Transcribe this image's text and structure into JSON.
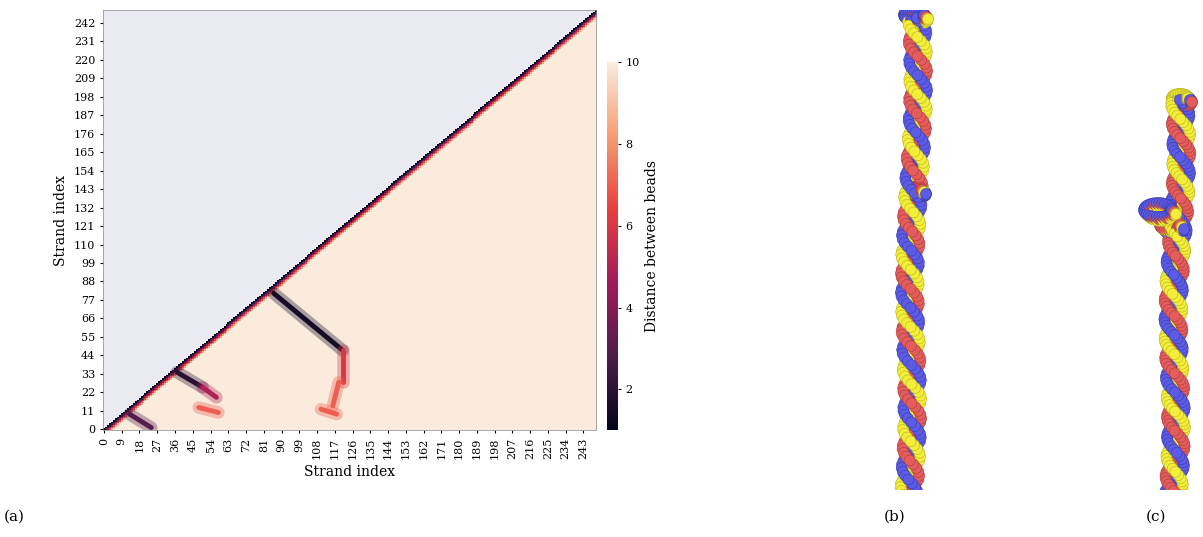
{
  "chart_data": {
    "type": "heatmap",
    "xlabel": "Strand index",
    "ylabel": "Strand index",
    "n": 250,
    "xlim": [
      -0.5,
      249.5
    ],
    "ylim": [
      -0.5,
      249.5
    ],
    "xticks": [
      0,
      9,
      18,
      27,
      36,
      45,
      54,
      63,
      72,
      81,
      90,
      99,
      108,
      117,
      126,
      135,
      144,
      153,
      162,
      171,
      180,
      189,
      198,
      207,
      216,
      225,
      234,
      243
    ],
    "yticks": [
      0,
      11,
      22,
      33,
      44,
      55,
      66,
      77,
      88,
      99,
      110,
      121,
      132,
      143,
      154,
      165,
      176,
      187,
      198,
      209,
      220,
      231,
      242
    ],
    "diagonal_band": [
      1.0,
      2.5,
      4.5,
      6.5,
      8.5
    ],
    "fill": 10,
    "contacts": [
      {
        "from": [
          13,
          9
        ],
        "to": [
          24,
          1
        ],
        "distance": 3
      },
      {
        "from": [
          37,
          34
        ],
        "to": [
          50,
          25
        ],
        "distance": 2
      },
      {
        "from": [
          50,
          25
        ],
        "to": [
          57,
          19
        ],
        "distance": 5
      },
      {
        "from": [
          48,
          13
        ],
        "to": [
          58,
          10
        ],
        "distance": 7
      },
      {
        "from": [
          86,
          81
        ],
        "to": [
          121,
          47
        ],
        "distance": 1.5
      },
      {
        "from": [
          121,
          47
        ],
        "to": [
          121,
          28
        ],
        "distance": 6
      },
      {
        "from": [
          119,
          28
        ],
        "to": [
          116,
          14
        ],
        "distance": 7
      },
      {
        "from": [
          110,
          12
        ],
        "to": [
          118,
          9
        ],
        "distance": 7
      }
    ],
    "colorbar": {
      "label": "Distance between beads",
      "range": [
        1,
        10
      ],
      "ticks": [
        2,
        4,
        6,
        8,
        10
      ]
    }
  },
  "panel_labels": [
    "(a)",
    "(b)",
    "(c)"
  ]
}
